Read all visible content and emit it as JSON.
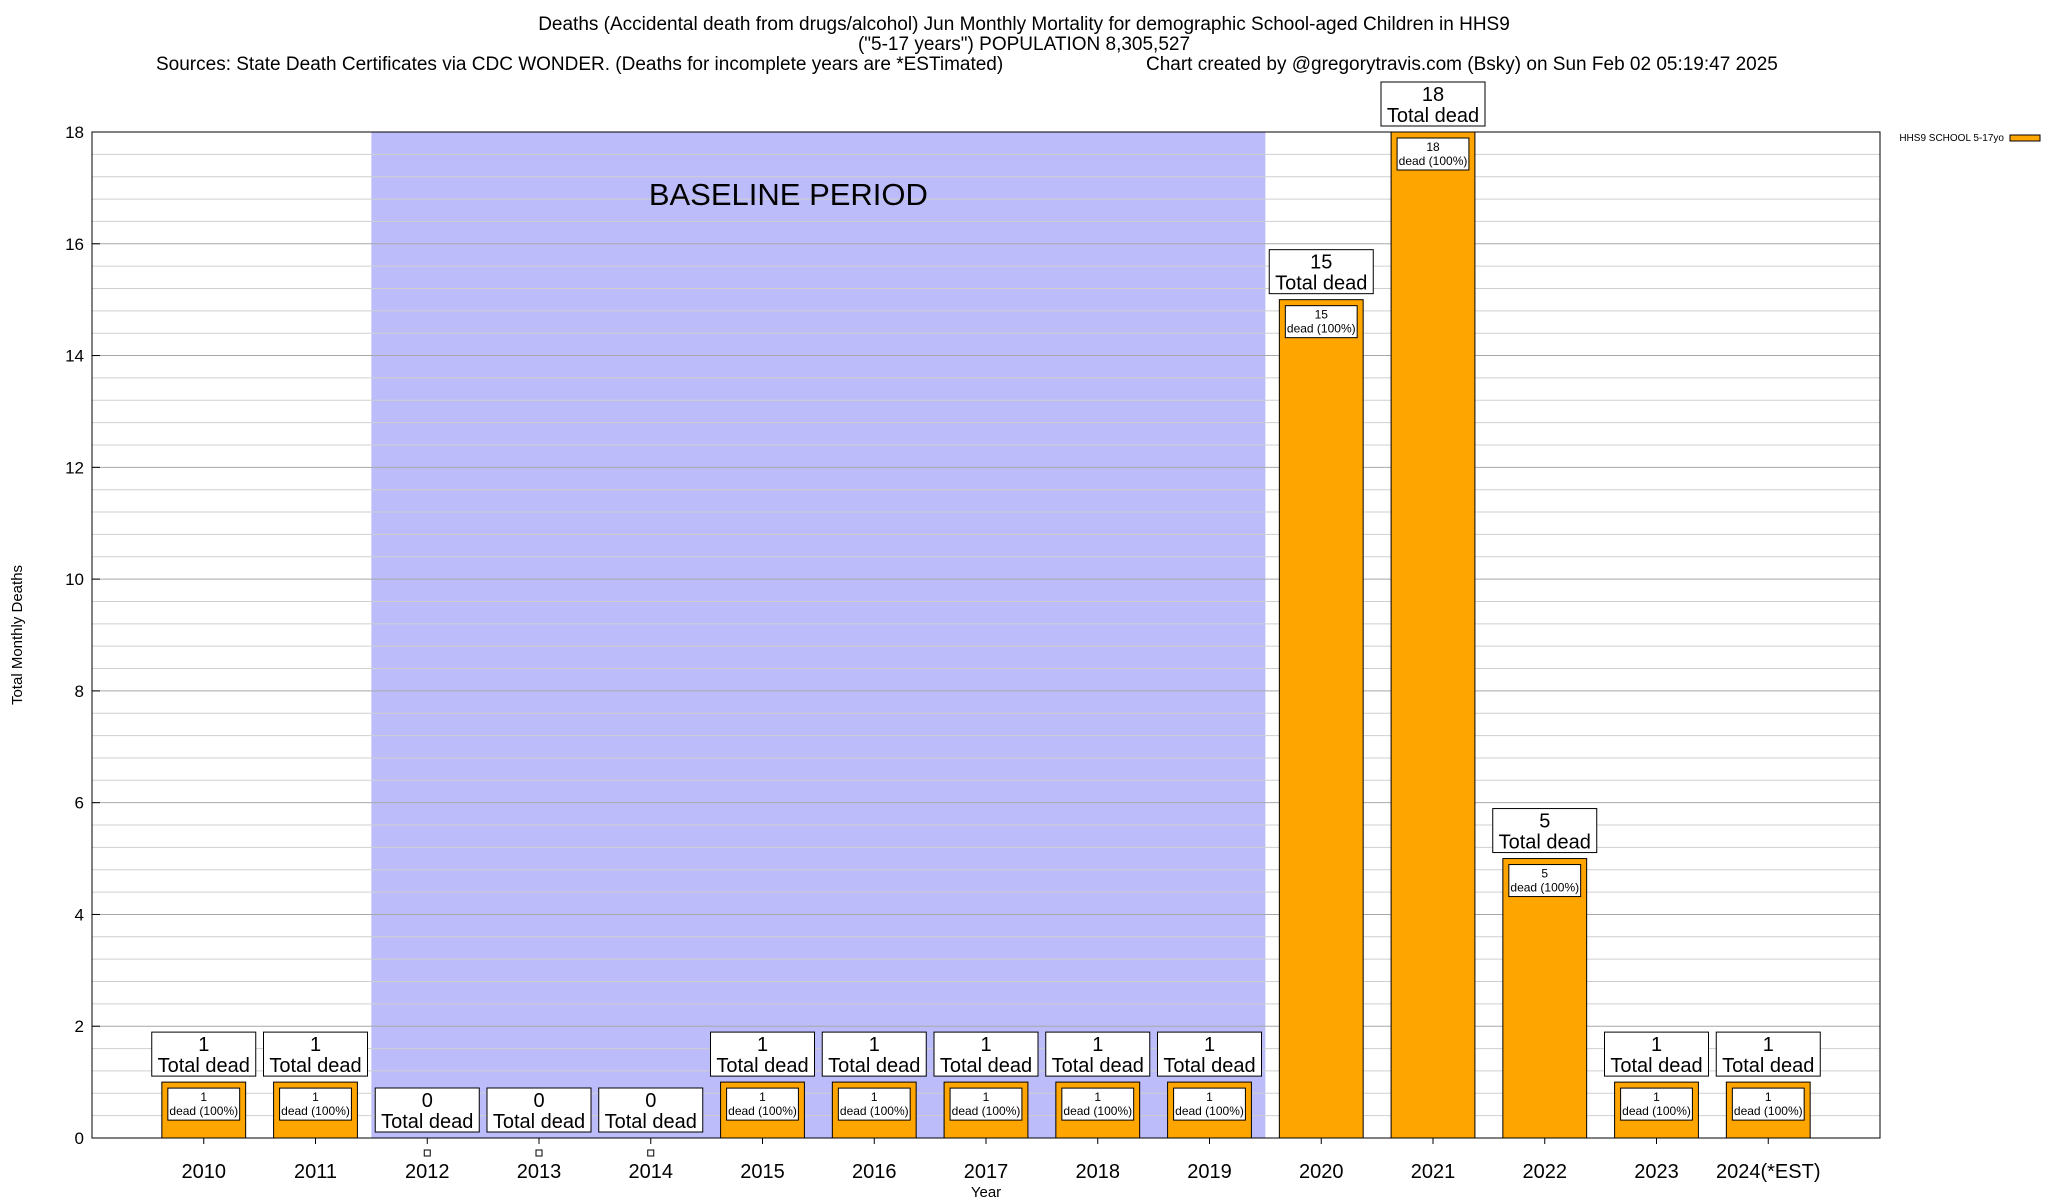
{
  "header": {
    "title_line1": "Deaths (Accidental death from drugs/alcohol) Jun Monthly Mortality for demographic School-aged Children in HHS9",
    "title_line2": "(\"5-17 years\") POPULATION 8,305,527",
    "sources": "Sources: State Death Certificates via CDC WONDER. (Deaths for incomplete years are *ESTimated)",
    "credit": "Chart created by @gregorytravis.com (Bsky) on Sun Feb 02 05:19:47 2025"
  },
  "chart_data": {
    "type": "bar",
    "xlabel": "Year",
    "ylabel": "Total Monthly Deaths",
    "ylim": [
      0,
      18
    ],
    "y_ticks": [
      0,
      2,
      4,
      6,
      8,
      10,
      12,
      14,
      16,
      18
    ],
    "grid": true,
    "categories": [
      "2010",
      "2011",
      "2012",
      "2013",
      "2014",
      "2015",
      "2016",
      "2017",
      "2018",
      "2019",
      "2020",
      "2021",
      "2022",
      "2023",
      "2024(*EST)"
    ],
    "series": [
      {
        "name": "HHS9 SCHOOL 5-17yo",
        "color": "#ffa500",
        "values": [
          1,
          1,
          0,
          0,
          0,
          1,
          1,
          1,
          1,
          1,
          15,
          18,
          5,
          1,
          1
        ]
      }
    ],
    "total_label_suffix": "Total dead",
    "inner_label_suffix": "dead (100%)",
    "baseline_region": {
      "label": "BASELINE PERIOD",
      "from_category": "2012",
      "to_category": "2019",
      "color": "#bcbcfa"
    },
    "legend_position": "top-right"
  }
}
